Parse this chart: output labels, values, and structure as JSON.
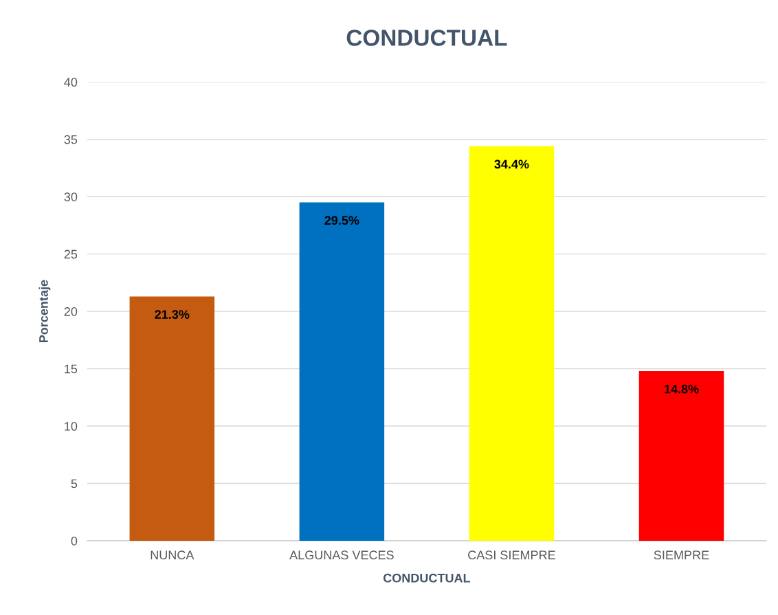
{
  "chart_data": {
    "type": "bar",
    "title": "CONDUCTUAL",
    "xlabel": "CONDUCTUAL",
    "ylabel": "Porcentaje",
    "categories": [
      "NUNCA",
      "ALGUNAS VECES",
      "CASI SIEMPRE",
      "SIEMPRE"
    ],
    "values": [
      21.3,
      29.5,
      34.4,
      14.8
    ],
    "colors": [
      "#c55a11",
      "#0070c0",
      "#ffff00",
      "#ff0000"
    ],
    "value_labels": [
      "21.3%",
      "29.5%",
      "34.4%",
      "14.8%"
    ],
    "ylim": [
      0,
      40
    ],
    "yticks": [
      0,
      5,
      10,
      15,
      20,
      25,
      30,
      35,
      40
    ],
    "grid": "y"
  }
}
